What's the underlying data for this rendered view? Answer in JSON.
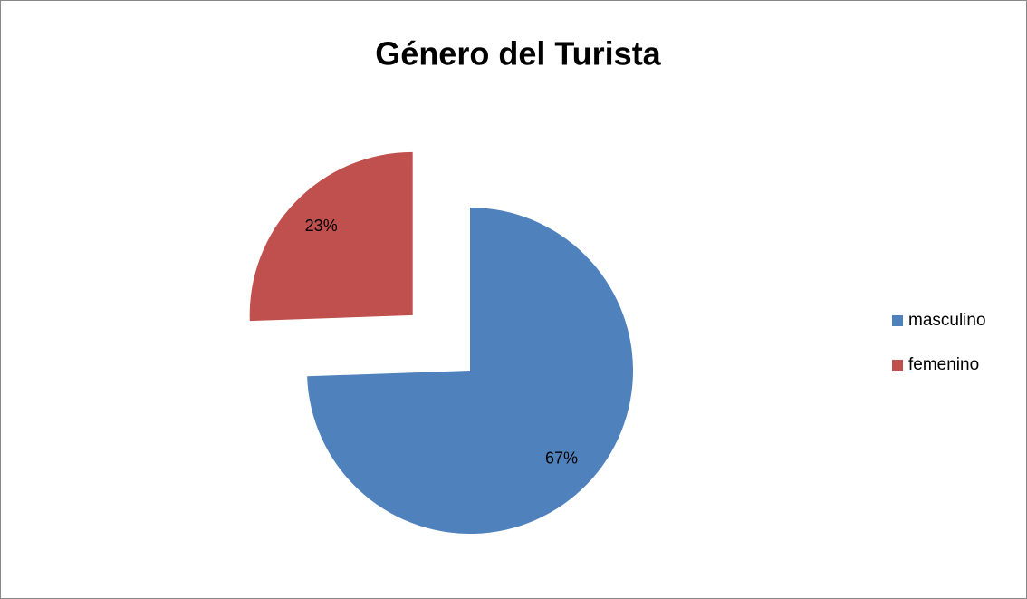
{
  "chart_data": {
    "type": "pie",
    "title": "Género del Turista",
    "categories": [
      "masculino",
      "femenino"
    ],
    "values": [
      67,
      23
    ],
    "value_labels": [
      "67%",
      "23%"
    ],
    "colors": [
      "#4f81bd",
      "#c0504d"
    ],
    "exploded": [
      false,
      true
    ],
    "legend": "right"
  }
}
